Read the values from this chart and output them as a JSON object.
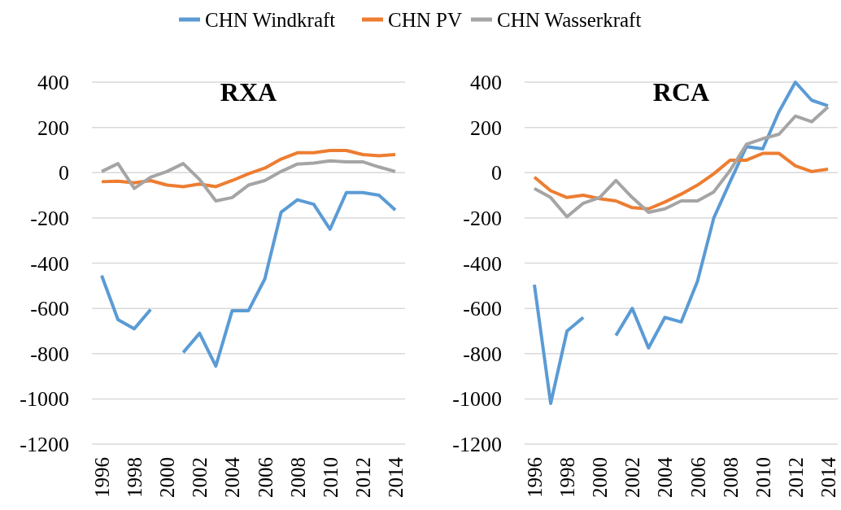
{
  "chart_data": [
    {
      "type": "line",
      "title": "RXA",
      "categories": [
        "1996",
        null,
        "1998",
        null,
        "2000",
        null,
        "2002",
        null,
        "2004",
        null,
        "2006",
        null,
        "2008",
        null,
        "2010",
        null,
        "2012",
        null,
        "2014"
      ],
      "ylim": [
        -1200,
        400
      ],
      "yticks": [
        -1200,
        -1000,
        -800,
        -600,
        -400,
        -200,
        0,
        200,
        400
      ],
      "grid": "y",
      "legend": "top",
      "line_style": "solid",
      "marker": "none",
      "series": [
        {
          "name": "CHN Windkraft",
          "color": "#5b9bd5",
          "values": [
            -455,
            -650,
            -690,
            -605,
            null,
            -795,
            -710,
            -855,
            -610,
            -610,
            -470,
            -175,
            -120,
            -140,
            -250,
            -88,
            -88,
            -100,
            -165
          ]
        },
        {
          "name": "CHN PV",
          "color": "#ed7d31",
          "values": [
            -40,
            -38,
            -45,
            -35,
            -55,
            -62,
            -50,
            -62,
            -35,
            -5,
            20,
            60,
            88,
            88,
            98,
            98,
            80,
            75,
            80
          ]
        },
        {
          "name": "CHN Wasserkraft",
          "color": "#a5a5a5",
          "values": [
            5,
            40,
            -70,
            -20,
            5,
            40,
            -30,
            -125,
            -110,
            -55,
            -35,
            5,
            38,
            42,
            52,
            48,
            48,
            25,
            5
          ]
        }
      ]
    },
    {
      "type": "line",
      "title": "RCA",
      "categories": [
        "1996",
        null,
        "1998",
        null,
        "2000",
        null,
        "2002",
        null,
        "2004",
        null,
        "2006",
        null,
        "2008",
        null,
        "2010",
        null,
        "2012",
        null,
        "2014"
      ],
      "ylim": [
        -1200,
        400
      ],
      "yticks": [
        -1200,
        -1000,
        -800,
        -600,
        -400,
        -200,
        0,
        200,
        400
      ],
      "grid": "y",
      "line_style": "solid",
      "marker": "none",
      "series": [
        {
          "color": "#5b9bd5",
          "values": [
            -495,
            -1020,
            -700,
            -640,
            null,
            -720,
            -600,
            -775,
            -640,
            -660,
            -480,
            -200,
            -40,
            115,
            105,
            270,
            400,
            320,
            295
          ]
        },
        {
          "color": "#ed7d31",
          "values": [
            -20,
            -80,
            -110,
            -100,
            -115,
            -125,
            -155,
            -160,
            -130,
            -95,
            -55,
            -5,
            55,
            55,
            85,
            85,
            30,
            5,
            15
          ]
        },
        {
          "color": "#a5a5a5",
          "values": [
            -70,
            -110,
            -195,
            -135,
            -110,
            -35,
            -110,
            -175,
            -160,
            -125,
            -125,
            -85,
            10,
            125,
            150,
            170,
            250,
            225,
            290
          ]
        }
      ]
    }
  ]
}
